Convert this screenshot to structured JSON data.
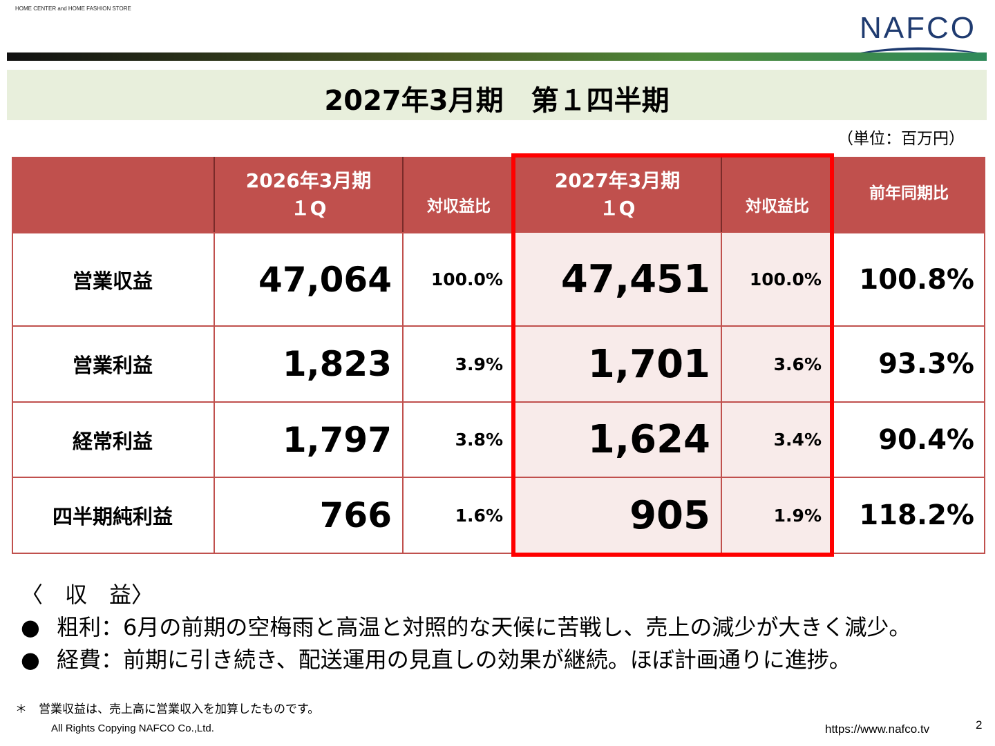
{
  "header": {
    "tagline": "HOME CENTER and HOME FASHION STORE",
    "logo_text": "NAFCO",
    "title": "2027年3月期　第１四半期",
    "unit": "（単位：百万円）"
  },
  "table": {
    "headers": {
      "prev_period_line1": "2026年3月期",
      "prev_period_line2": "１Q",
      "prev_ratio": "対収益比",
      "curr_period_line1": "2027年3月期",
      "curr_period_line2": "１Q",
      "curr_ratio": "対収益比",
      "yoy": "前年同期比"
    },
    "rows": [
      {
        "label": "営業収益",
        "prev": "47,064",
        "prev_ratio": "100.0%",
        "curr": "47,451",
        "curr_ratio": "100.0%",
        "yoy": "100.8%"
      },
      {
        "label": "営業利益",
        "prev": "1,823",
        "prev_ratio": "3.9%",
        "curr": "1,701",
        "curr_ratio": "3.6%",
        "yoy": "93.3%"
      },
      {
        "label": "経常利益",
        "prev": "1,797",
        "prev_ratio": "3.8%",
        "curr": "1,624",
        "curr_ratio": "3.4%",
        "yoy": "90.4%"
      },
      {
        "label": "四半期純利益",
        "prev": "766",
        "prev_ratio": "1.6%",
        "curr": "905",
        "curr_ratio": "1.9%",
        "yoy": "118.2%"
      }
    ]
  },
  "notes": {
    "heading": "〈　収　益〉",
    "bullet_symbol": "●",
    "items": [
      "粗利：6月の前期の空梅雨と高温と対照的な天候に苦戦し、売上の減少が大きく減少。",
      "経費：前期に引き続き、配送運用の見直しの効果が継続。ほぼ計画通りに進捗。"
    ]
  },
  "footer": {
    "footnote": "＊　営業収益は、売上高に営業収入を加算したものです。",
    "copyright": "All Rights Copying NAFCO Co.,Ltd.",
    "url": "https://www.nafco.tv",
    "page_number": "2"
  },
  "colors": {
    "header_red": "#c0504d",
    "highlight_box": "#ff0000",
    "title_band": "#e8efdc",
    "logo_navy": "#1f3b70"
  }
}
